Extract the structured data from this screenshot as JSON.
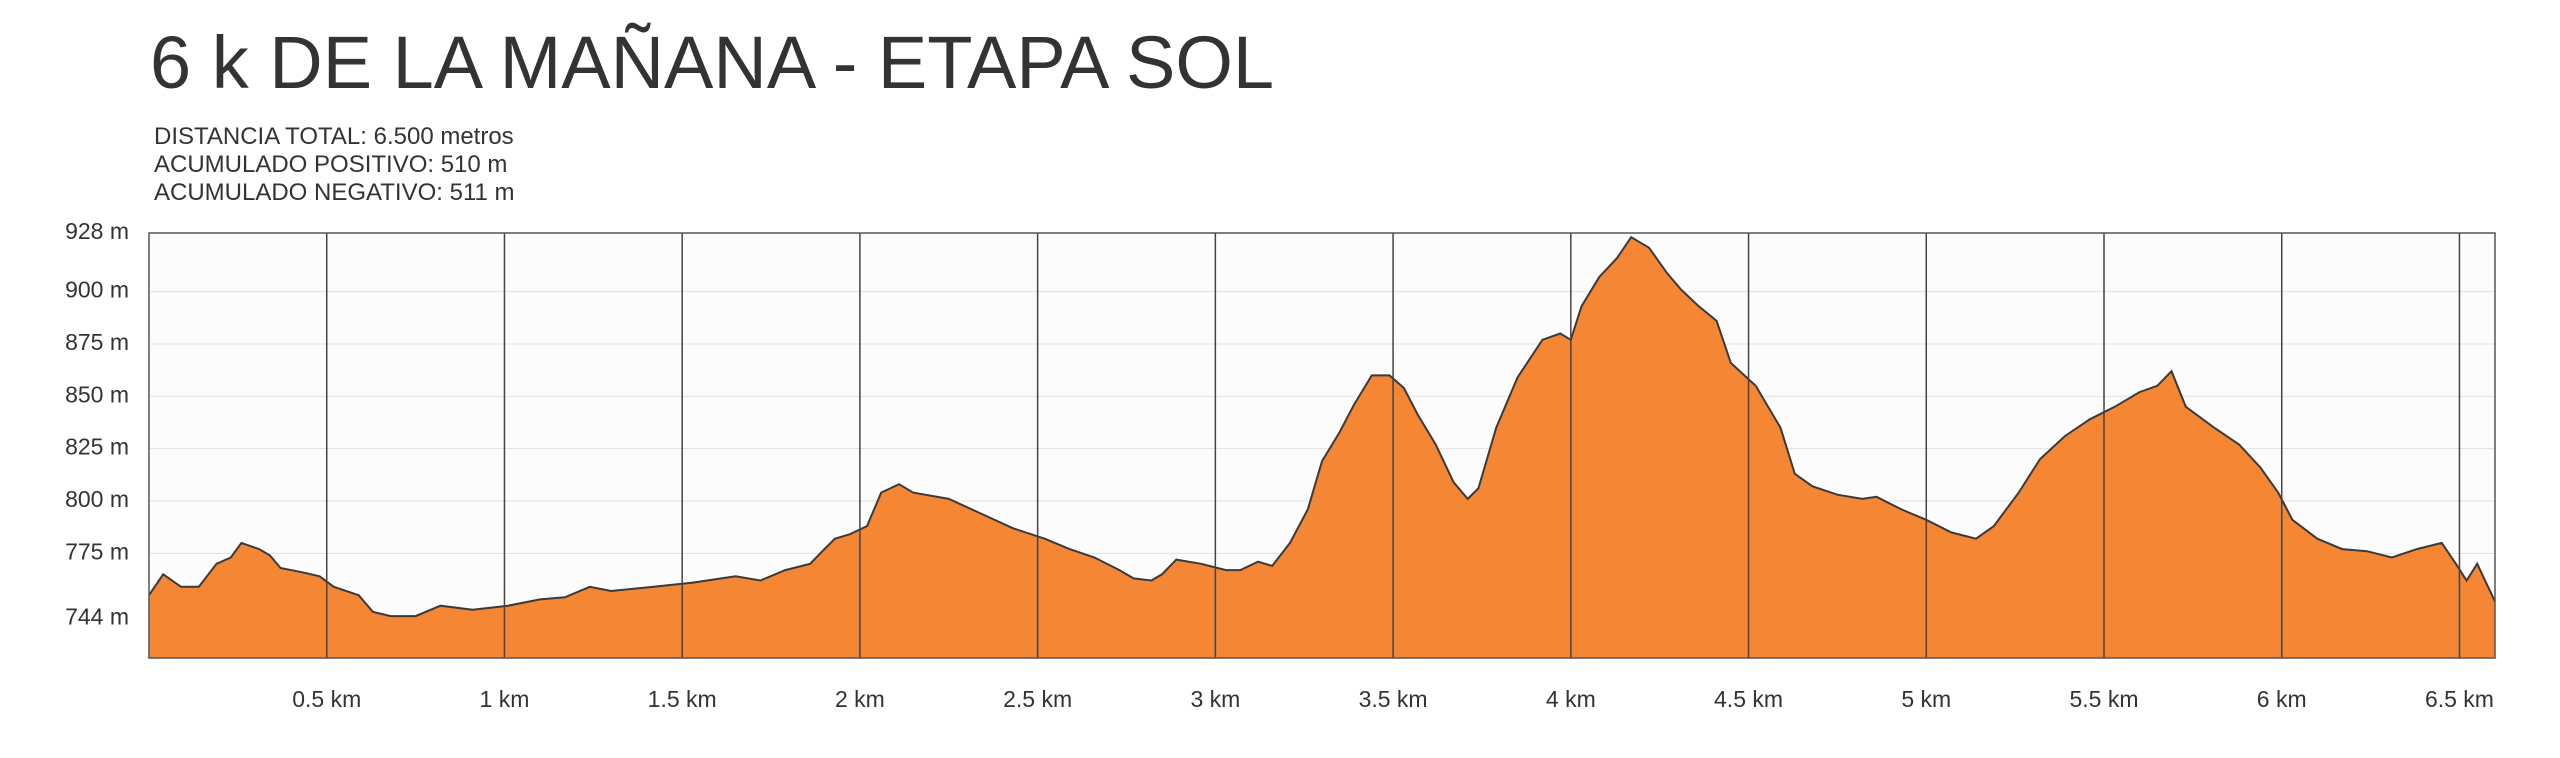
{
  "chart_data": {
    "type": "area",
    "title": "6 k DE LA MAÑANA - ETAPA SOL",
    "info_lines": [
      "DISTANCIA TOTAL: 6.500 metros",
      "ACUMULADO POSITIVO: 510 m",
      "ACUMULADO NEGATIVO: 511 m"
    ],
    "color": "#f58634",
    "line_color": "#3a3a3a",
    "grid": true,
    "x": [
      0,
      0.04,
      0.09,
      0.14,
      0.19,
      0.23,
      0.26,
      0.31,
      0.34,
      0.37,
      0.43,
      0.48,
      0.52,
      0.59,
      0.63,
      0.68,
      0.75,
      0.82,
      0.91,
      1.01,
      1.1,
      1.17,
      1.24,
      1.3,
      1.42,
      1.53,
      1.65,
      1.72,
      1.79,
      1.86,
      1.9,
      1.93,
      1.97,
      2.02,
      2.06,
      2.11,
      2.15,
      2.25,
      2.34,
      2.43,
      2.52,
      2.59,
      2.66,
      2.73,
      2.77,
      2.82,
      2.85,
      2.89,
      2.96,
      3.03,
      3.07,
      3.12,
      3.16,
      3.21,
      3.26,
      3.3,
      3.35,
      3.39,
      3.44,
      3.49,
      3.53,
      3.57,
      3.62,
      3.67,
      3.71,
      3.74,
      3.79,
      3.85,
      3.92,
      3.97,
      4.0,
      4.03,
      4.08,
      4.13,
      4.17,
      4.22,
      4.27,
      4.31,
      4.36,
      4.41,
      4.45,
      4.52,
      4.59,
      4.63,
      4.68,
      4.75,
      4.82,
      4.86,
      4.93,
      5.0,
      5.07,
      5.14,
      5.19,
      5.26,
      5.32,
      5.39,
      5.46,
      5.53,
      5.6,
      5.65,
      5.69,
      5.73,
      5.81,
      5.88,
      5.94,
      5.99,
      6.03,
      6.1,
      6.17,
      6.24,
      6.31,
      6.38,
      6.45,
      6.49,
      6.52,
      6.55,
      6.6
    ],
    "values": [
      755,
      765,
      759,
      759,
      770,
      773,
      780,
      777,
      774,
      768,
      766,
      764,
      759,
      755,
      747,
      745,
      745,
      750,
      748,
      750,
      753,
      754,
      759,
      757,
      759,
      761,
      764,
      762,
      767,
      770,
      777,
      782,
      784,
      788,
      804,
      808,
      804,
      801,
      794,
      787,
      782,
      777,
      773,
      767,
      763,
      762,
      765,
      772,
      770,
      767,
      767,
      771,
      769,
      780,
      796,
      819,
      833,
      846,
      860,
      860,
      854,
      841,
      827,
      809,
      801,
      806,
      835,
      859,
      877,
      880,
      877,
      893,
      907,
      916,
      926,
      921,
      909,
      901,
      893,
      886,
      866,
      855,
      835,
      813,
      807,
      803,
      801,
      802,
      796,
      791,
      785,
      782,
      788,
      804,
      820,
      831,
      839,
      845,
      852,
      855,
      862,
      845,
      835,
      827,
      816,
      804,
      791,
      782,
      777,
      776,
      773,
      777,
      780,
      770,
      762,
      770,
      752
    ],
    "xlim": [
      0,
      6.6
    ],
    "ylim": [
      725,
      928
    ],
    "xticks": [
      {
        "value": 0.5,
        "label": "0.5 km"
      },
      {
        "value": 1,
        "label": "1 km"
      },
      {
        "value": 1.5,
        "label": "1.5 km"
      },
      {
        "value": 2,
        "label": "2 km"
      },
      {
        "value": 2.5,
        "label": "2.5 km"
      },
      {
        "value": 3,
        "label": "3 km"
      },
      {
        "value": 3.5,
        "label": "3.5 km"
      },
      {
        "value": 4,
        "label": "4 km"
      },
      {
        "value": 4.5,
        "label": "4.5 km"
      },
      {
        "value": 5,
        "label": "5 km"
      },
      {
        "value": 5.5,
        "label": "5.5 km"
      },
      {
        "value": 6,
        "label": "6 km"
      },
      {
        "value": 6.5,
        "label": "6.5 km"
      }
    ],
    "yticks": [
      {
        "value": 744,
        "label": "744 m"
      },
      {
        "value": 775,
        "label": "775 m"
      },
      {
        "value": 800,
        "label": "800 m"
      },
      {
        "value": 825,
        "label": "825 m"
      },
      {
        "value": 850,
        "label": "850 m"
      },
      {
        "value": 875,
        "label": "875 m"
      },
      {
        "value": 900,
        "label": "900 m"
      },
      {
        "value": 928,
        "label": "928 m"
      }
    ]
  }
}
